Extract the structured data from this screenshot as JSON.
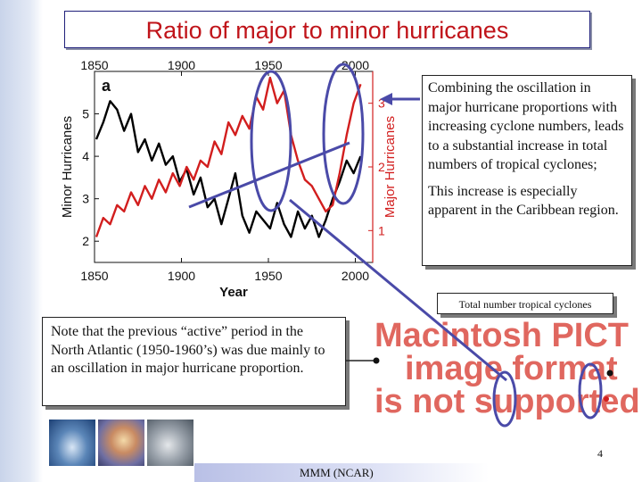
{
  "title": "Ratio of major to minor hurricanes",
  "callout_main": {
    "p1": "Combining the oscillation in major hurricane proportions with increasing cyclone numbers, leads to a substantial increase in total numbers of tropical cyclones;",
    "p2": "This increase is especially apparent in the Caribbean region."
  },
  "callout_total": "Total number tropical cyclones",
  "callout_note": "Note that the previous “active” period in the North Atlantic (1950-1960’s) was due mainly to an oscillation in major hurricane proportion.",
  "pict_placeholder": [
    "Macintosh PICT",
    "image format",
    "is not supported"
  ],
  "footer": "MMM (NCAR)",
  "page_number": "4",
  "colors": {
    "title": "#c0141a",
    "minor_series": "#000000",
    "major_series": "#d21e1e",
    "annotation": "#4a4aa8"
  },
  "chart_data": {
    "type": "line",
    "panel_label": "a",
    "xlabel": "Year",
    "ylabel_left": "Minor Hurricanes",
    "ylabel_right": "Major Hurricanes",
    "xlim": [
      1850,
      2010
    ],
    "x_ticks": [
      "1850",
      "1900",
      "1950",
      "2000"
    ],
    "ylim_left": [
      1.5,
      6
    ],
    "y_ticks_left": [
      "2",
      "3",
      "4",
      "5"
    ],
    "ylim_right": [
      0.5,
      3.5
    ],
    "y_ticks_right": [
      "1",
      "2",
      "3"
    ],
    "series": [
      {
        "axis": "left",
        "color": "#000000",
        "x": [
          1851,
          1855,
          1859,
          1863,
          1867,
          1871,
          1875,
          1879,
          1883,
          1887,
          1891,
          1895,
          1899,
          1903,
          1907,
          1911,
          1915,
          1919,
          1923,
          1927,
          1931,
          1935,
          1939,
          1943,
          1947,
          1951,
          1955,
          1959,
          1963,
          1967,
          1971,
          1975,
          1979,
          1983,
          1987,
          1991,
          1995,
          1999,
          2003
        ],
        "y": [
          4.4,
          4.8,
          5.3,
          5.1,
          4.6,
          5.0,
          4.1,
          4.4,
          3.9,
          4.3,
          3.8,
          4.0,
          3.4,
          3.7,
          3.1,
          3.5,
          2.8,
          3.0,
          2.4,
          3.0,
          3.6,
          2.6,
          2.2,
          2.7,
          2.5,
          2.3,
          2.9,
          2.4,
          2.1,
          2.7,
          2.3,
          2.6,
          2.1,
          2.5,
          3.0,
          3.4,
          3.9,
          3.6,
          4.0
        ]
      },
      {
        "axis": "right",
        "color": "#d21e1e",
        "x": [
          1851,
          1855,
          1859,
          1863,
          1867,
          1871,
          1875,
          1879,
          1883,
          1887,
          1891,
          1895,
          1899,
          1903,
          1907,
          1911,
          1915,
          1919,
          1923,
          1927,
          1931,
          1935,
          1939,
          1943,
          1947,
          1951,
          1955,
          1959,
          1963,
          1967,
          1971,
          1975,
          1979,
          1983,
          1987,
          1991,
          1995,
          1999,
          2003
        ],
        "y": [
          0.9,
          1.2,
          1.1,
          1.4,
          1.3,
          1.6,
          1.4,
          1.7,
          1.5,
          1.8,
          1.6,
          1.9,
          1.7,
          2.0,
          1.8,
          2.1,
          2.0,
          2.4,
          2.2,
          2.7,
          2.5,
          2.8,
          2.6,
          3.1,
          2.9,
          3.4,
          3.0,
          3.2,
          2.5,
          2.1,
          1.8,
          1.7,
          1.5,
          1.3,
          1.4,
          1.9,
          2.5,
          3.0,
          3.3
        ]
      }
    ]
  }
}
